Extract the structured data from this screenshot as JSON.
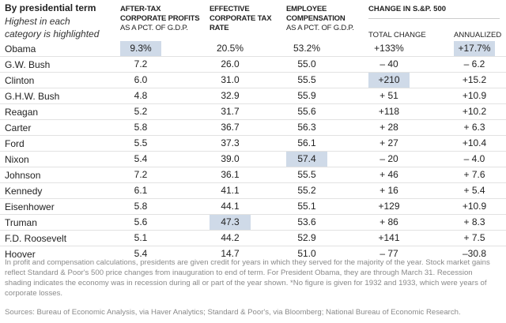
{
  "header": {
    "title": "By presidential term",
    "subtitle": "Highest in each category is highlighted",
    "columns": [
      {
        "bold": "AFTER-TAX CORPORATE PROFITS",
        "sub": "AS A PCT. OF G.D.P."
      },
      {
        "bold": "EFFECTIVE CORPORATE TAX RATE",
        "sub": ""
      },
      {
        "bold": "EMPLOYEE COMPENSATION",
        "sub": "AS A PCT. OF G.D.P."
      }
    ],
    "sp_group": "CHANGE IN S.&P. 500",
    "sp_total": "TOTAL CHANGE",
    "sp_annualized": "ANNUALIZED"
  },
  "highlight_color": "#cfdae8",
  "rows": [
    {
      "president": "Obama",
      "profits": "9.3%",
      "tax": "20.5%",
      "comp": "53.2%",
      "total": "+133%",
      "annual": "+17.7%",
      "hl": [
        "profits",
        "annual"
      ]
    },
    {
      "president": "G.W. Bush",
      "profits": "7.2",
      "tax": "26.0",
      "comp": "55.0",
      "total": "– 40",
      "annual": "– 6.2",
      "hl": []
    },
    {
      "president": "Clinton",
      "profits": "6.0",
      "tax": "31.0",
      "comp": "55.5",
      "total": "+210",
      "annual": "+15.2",
      "hl": [
        "total"
      ]
    },
    {
      "president": "G.H.W. Bush",
      "profits": "4.8",
      "tax": "32.9",
      "comp": "55.9",
      "total": "+ 51",
      "annual": "+10.9",
      "hl": []
    },
    {
      "president": "Reagan",
      "profits": "5.2",
      "tax": "31.7",
      "comp": "55.6",
      "total": "+118",
      "annual": "+10.2",
      "hl": []
    },
    {
      "president": "Carter",
      "profits": "5.8",
      "tax": "36.7",
      "comp": "56.3",
      "total": "+ 28",
      "annual": "+ 6.3",
      "hl": []
    },
    {
      "president": "Ford",
      "profits": "5.5",
      "tax": "37.3",
      "comp": "56.1",
      "total": "+ 27",
      "annual": "+10.4",
      "hl": []
    },
    {
      "president": "Nixon",
      "profits": "5.4",
      "tax": "39.0",
      "comp": "57.4",
      "total": "– 20",
      "annual": "– 4.0",
      "hl": [
        "comp"
      ]
    },
    {
      "president": "Johnson",
      "profits": "7.2",
      "tax": "36.1",
      "comp": "55.5",
      "total": "+ 46",
      "annual": "+ 7.6",
      "hl": []
    },
    {
      "president": "Kennedy",
      "profits": "6.1",
      "tax": "41.1",
      "comp": "55.2",
      "total": "+ 16",
      "annual": "+ 5.4",
      "hl": []
    },
    {
      "president": "Eisenhower",
      "profits": "5.8",
      "tax": "44.1",
      "comp": "55.1",
      "total": "+129",
      "annual": "+10.9",
      "hl": []
    },
    {
      "president": "Truman",
      "profits": "5.6",
      "tax": "47.3",
      "comp": "53.6",
      "total": "+ 86",
      "annual": "+ 8.3",
      "hl": [
        "tax"
      ]
    },
    {
      "president": "F.D. Roosevelt",
      "profits": "5.1",
      "tax": "44.2",
      "comp": "52.9",
      "total": "+141",
      "annual": "+ 7.5",
      "hl": []
    },
    {
      "president": "Hoover",
      "profits": "5.4",
      "tax": "14.7",
      "comp": "51.0",
      "total": "– 77",
      "annual": "–30.8",
      "hl": []
    }
  ],
  "footnote": "In profit and compensation calculations, presidents are given credit for years in which they served for the majority of the year. Stock market gains reflect Standard & Poor's 500 price changes from inauguration to end of term. For President Obama, they are through March 31. Recession shading indicates the economy was in recession during all or part of the year shown. *No figure is given for 1932 and 1933, which were years of corporate losses.",
  "sources": "Sources: Bureau of Economic Analysis, via Haver Analytics; Standard & Poor's, via Bloomberg; National Bureau of Economic Research."
}
